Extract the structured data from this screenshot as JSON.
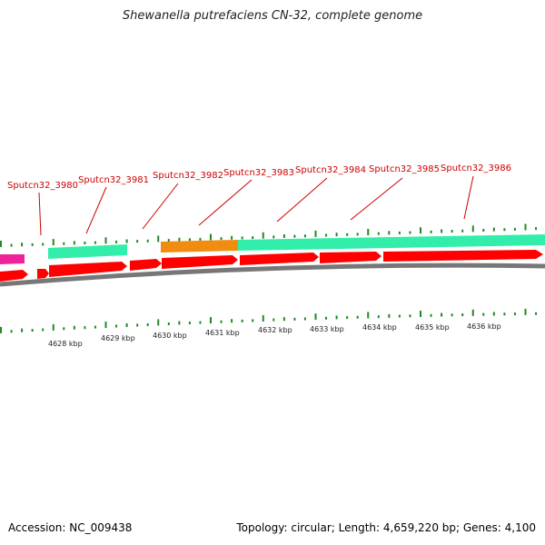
{
  "title": "Shewanella putrefaciens CN-32, complete genome",
  "footer": {
    "accession": "Accession: NC_009438",
    "summary": "Topology: circular; Length: 4,659,220 bp; Genes: 4,100"
  },
  "gene_labels": [
    "Sputcn32_3980",
    "Sputcn32_3981",
    "Sputcn32_3982",
    "Sputcn32_3983",
    "Sputcn32_3984",
    "Sputcn32_3985",
    "Sputcn32_3986"
  ],
  "kbp_labels": [
    "4628 kbp",
    "4629 kbp",
    "4630 kbp",
    "4631 kbp",
    "4632 kbp",
    "4633 kbp",
    "4634 kbp",
    "4635 kbp",
    "4636 kbp"
  ],
  "colors": {
    "cds": "#ff0000",
    "gene": "#33eeaa",
    "orange_feature": "#f08c10",
    "pink_feature": "#ee2299",
    "backbone": "#777777",
    "ticks": "#228822",
    "label_text": "#cc0000"
  }
}
